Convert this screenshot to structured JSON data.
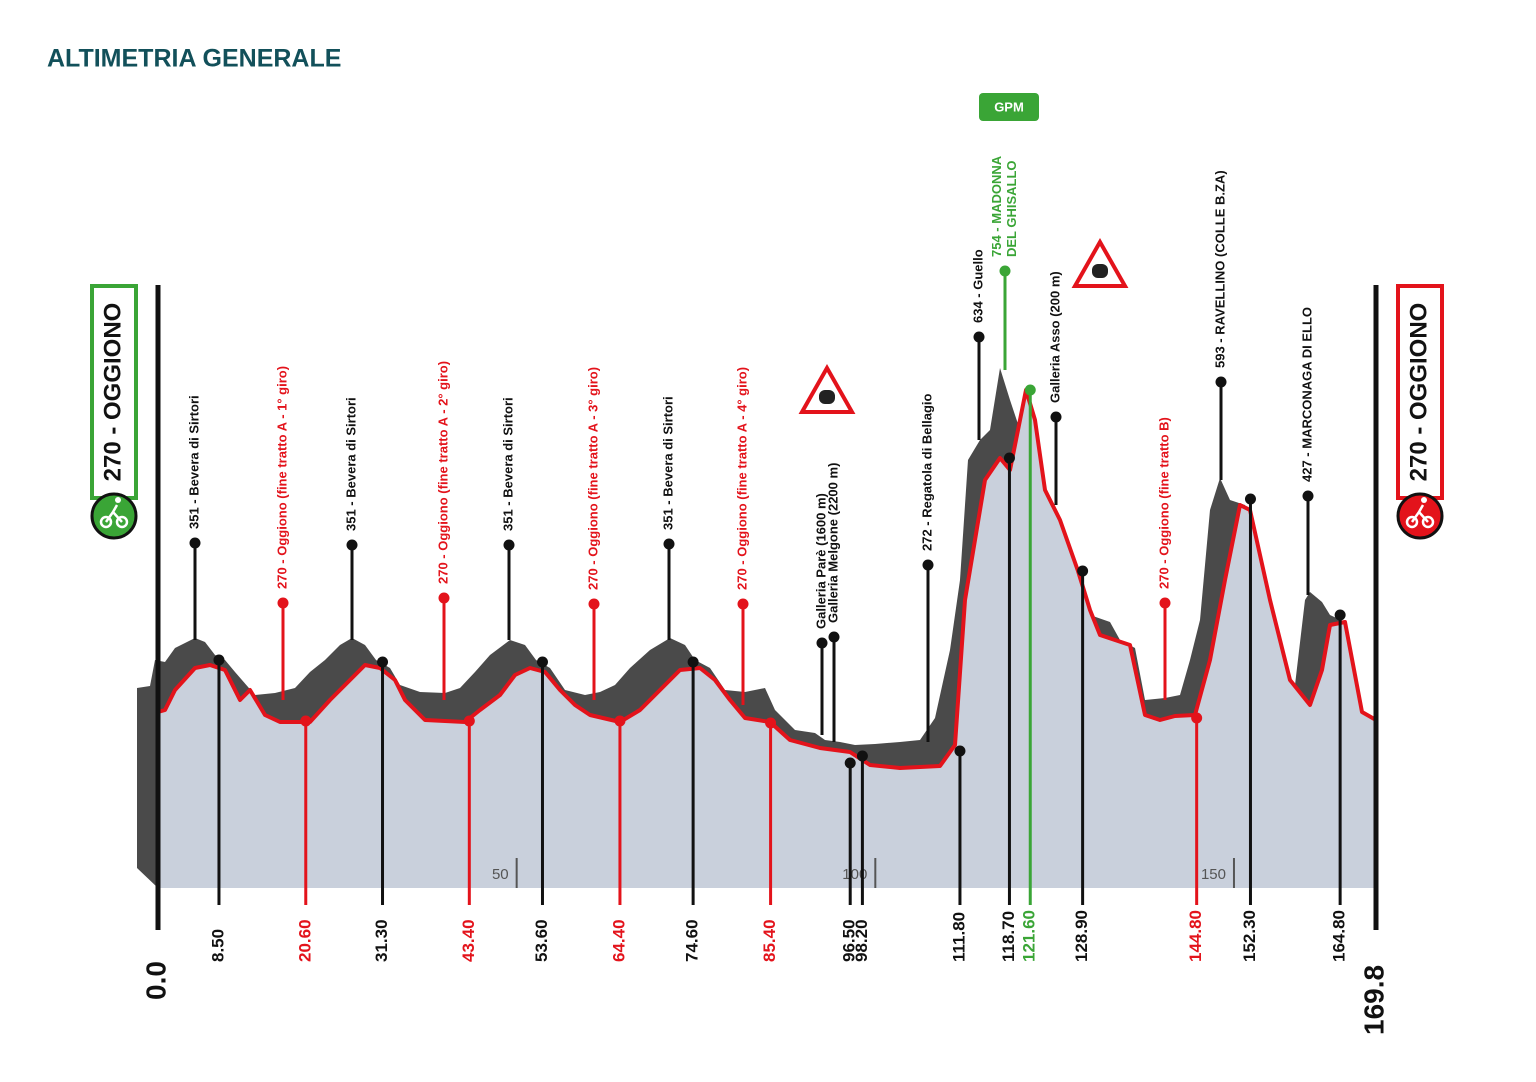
{
  "header": {
    "title": "ALTIMETRIA GENERALE"
  },
  "start": {
    "label": "270 - OGGIONO",
    "km": "0.0",
    "color": "#3aa536"
  },
  "finish": {
    "label": "270 - OGGIONO",
    "km": "169.8",
    "color": "#e3131b"
  },
  "gpm": {
    "label": "GPM",
    "color": "#3aa536"
  },
  "waypoints": [
    {
      "lines": [
        "351 - Bevera di Sirtori"
      ],
      "color": "#111111"
    },
    {
      "lines": [
        "270 - Oggiono (fine tratto A - 1° giro)"
      ],
      "color": "#e3131b"
    },
    {
      "lines": [
        "351 - Bevera di Sirtori"
      ],
      "color": "#111111"
    },
    {
      "lines": [
        "270 - Oggiono (fine tratto A - 2° giro)"
      ],
      "color": "#e3131b"
    },
    {
      "lines": [
        "351 - Bevera di Sirtori"
      ],
      "color": "#111111"
    },
    {
      "lines": [
        "270 - Oggiono (fine tratto A - 3° giro)"
      ],
      "color": "#e3131b"
    },
    {
      "lines": [
        "351 - Bevera di Sirtori"
      ],
      "color": "#111111"
    },
    {
      "lines": [
        "270 - Oggiono (fine tratto A - 4° giro)"
      ],
      "color": "#e3131b"
    },
    {
      "lines": [
        "Galleria Parè (1600 m)"
      ],
      "color": "#111111"
    },
    {
      "lines": [
        "Galleria Melgone (2200 m)"
      ],
      "color": "#111111"
    },
    {
      "lines": [
        "272 - Regatola di Bellagio"
      ],
      "color": "#111111"
    },
    {
      "lines": [
        "634 - Guello"
      ],
      "color": "#111111"
    },
    {
      "lines": [
        "754 - MADONNA",
        "DEL GHISALLO"
      ],
      "color": "#3aa536"
    },
    {
      "lines": [
        "Galleria Asso (200 m)"
      ],
      "color": "#111111"
    },
    {
      "lines": [
        "270 - Oggiono (fine tratto B)"
      ],
      "color": "#e3131b"
    },
    {
      "lines": [
        "593 - RAVELLINO (COLLE B.ZA)"
      ],
      "color": "#111111"
    },
    {
      "lines": [
        "427 - MARCONAGA DI ELLO"
      ],
      "color": "#111111"
    }
  ],
  "km_marks": [
    {
      "label": "8.50",
      "color": "#111111"
    },
    {
      "label": "20.60",
      "color": "#e3131b"
    },
    {
      "label": "31.30",
      "color": "#111111"
    },
    {
      "label": "43.40",
      "color": "#e3131b"
    },
    {
      "label": "53.60",
      "color": "#111111"
    },
    {
      "label": "64.40",
      "color": "#e3131b"
    },
    {
      "label": "74.60",
      "color": "#111111"
    },
    {
      "label": "85.40",
      "color": "#e3131b"
    },
    {
      "label": "96.50",
      "color": "#111111"
    },
    {
      "label": "98.20",
      "color": "#111111"
    },
    {
      "label": "111.80",
      "color": "#111111"
    },
    {
      "label": "118.70",
      "color": "#111111"
    },
    {
      "label": "121.60",
      "color": "#3aa536"
    },
    {
      "label": "128.90",
      "color": "#111111"
    },
    {
      "label": "144.80",
      "color": "#e3131b"
    },
    {
      "label": "152.30",
      "color": "#111111"
    },
    {
      "label": "164.80",
      "color": "#111111"
    }
  ],
  "distance_ticks": [
    "50",
    "100",
    "150"
  ]
}
